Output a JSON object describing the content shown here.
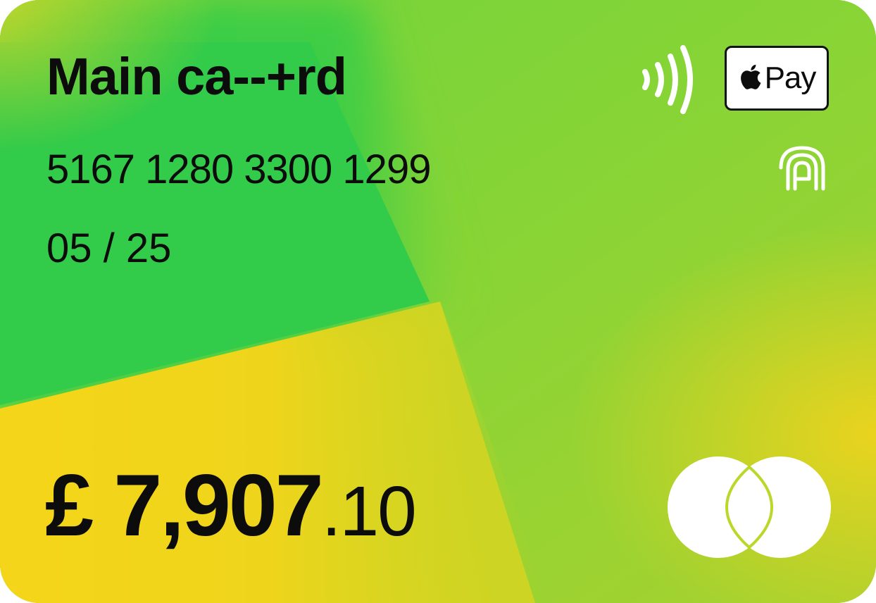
{
  "card": {
    "title": "Main ca--+rd",
    "number": "5167 1280 3300 1299",
    "expiry": "05 / 25",
    "balance_major": "£ 7,907",
    "balance_minor": ".10",
    "wallet_label": "Pay"
  },
  "icons": {
    "contactless": "contactless-icon",
    "wallet": "apple-pay-badge",
    "wallet_logo": "apple-icon",
    "fingerprint": "fingerprint-icon",
    "network": "mastercard-logo"
  },
  "colors": {
    "green": "#35cc48",
    "lime": "#8cd435",
    "yellow": "#f5d61a",
    "text": "#0c0c0c",
    "white": "#ffffff"
  }
}
